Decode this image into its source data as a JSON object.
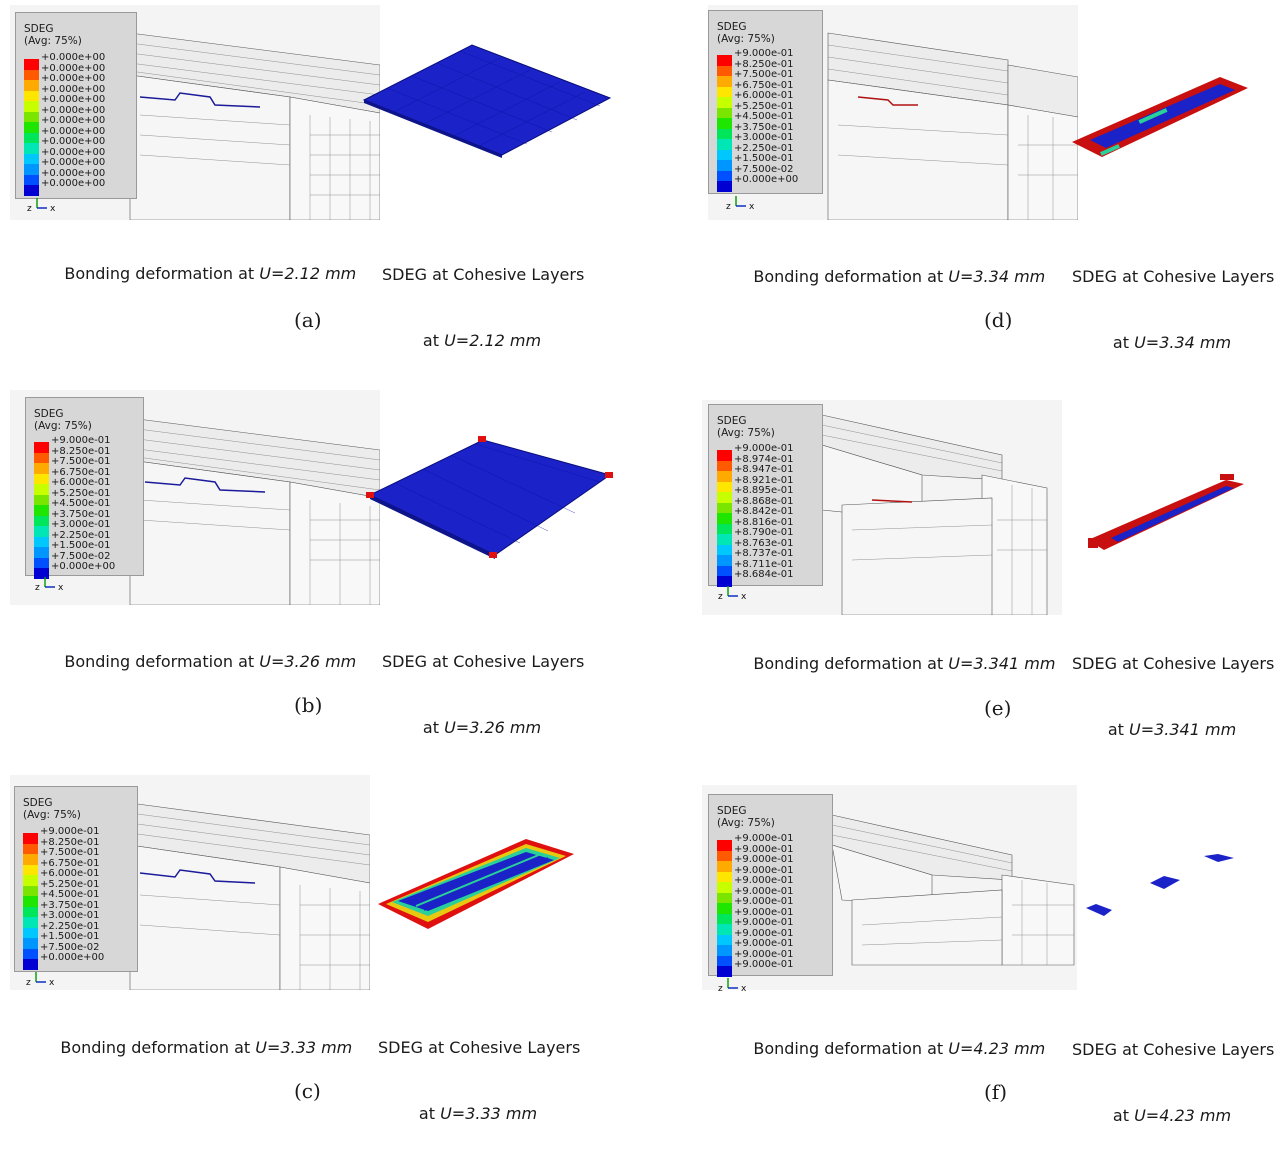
{
  "colors": [
    "#ff0000",
    "#ff5a00",
    "#ffaa00",
    "#ffe600",
    "#c8ff00",
    "#7ae600",
    "#1ee600",
    "#00e65a",
    "#00e6b4",
    "#00c8ff",
    "#0096ff",
    "#0050ff",
    "#0000d2"
  ],
  "panels": [
    {
      "id": "a",
      "legend_title": "SDEG",
      "legend_subtitle": "(Avg: 75%)",
      "legend_values": [
        "+0.000e+00",
        "+0.000e+00",
        "+0.000e+00",
        "+0.000e+00",
        "+0.000e+00",
        "+0.000e+00",
        "+0.000e+00",
        "+0.000e+00",
        "+0.000e+00",
        "+0.000e+00",
        "+0.000e+00",
        "+0.000e+00",
        "+0.000e+00"
      ],
      "caption_left_prefix": "Bonding deformation at ",
      "caption_left_u": "U=2.12 mm",
      "caption_right_line1": "SDEG at Cohesive Layers",
      "caption_right_prefix": "at ",
      "caption_right_u": "U=2.12 mm",
      "sublabel": "(a)"
    },
    {
      "id": "b",
      "legend_title": "SDEG",
      "legend_subtitle": "(Avg: 75%)",
      "legend_values": [
        "+9.000e-01",
        "+8.250e-01",
        "+7.500e-01",
        "+6.750e-01",
        "+6.000e-01",
        "+5.250e-01",
        "+4.500e-01",
        "+3.750e-01",
        "+3.000e-01",
        "+2.250e-01",
        "+1.500e-01",
        "+7.500e-02",
        "+0.000e+00"
      ],
      "caption_left_prefix": "Bonding deformation at ",
      "caption_left_u": "U=3.26 mm",
      "caption_right_line1": "SDEG at Cohesive Layers",
      "caption_right_prefix": "at ",
      "caption_right_u": "U=3.26 mm",
      "sublabel": "(b)"
    },
    {
      "id": "c",
      "legend_title": "SDEG",
      "legend_subtitle": "(Avg: 75%)",
      "legend_values": [
        "+9.000e-01",
        "+8.250e-01",
        "+7.500e-01",
        "+6.750e-01",
        "+6.000e-01",
        "+5.250e-01",
        "+4.500e-01",
        "+3.750e-01",
        "+3.000e-01",
        "+2.250e-01",
        "+1.500e-01",
        "+7.500e-02",
        "+0.000e+00"
      ],
      "caption_left_prefix": "Bonding deformation at ",
      "caption_left_u": "U=3.33 mm",
      "caption_right_line1": "SDEG at Cohesive Layers",
      "caption_right_prefix": "at ",
      "caption_right_u": "U=3.33 mm",
      "sublabel": "(c)"
    },
    {
      "id": "d",
      "legend_title": "SDEG",
      "legend_subtitle": "(Avg: 75%)",
      "legend_values": [
        "+9.000e-01",
        "+8.250e-01",
        "+7.500e-01",
        "+6.750e-01",
        "+6.000e-01",
        "+5.250e-01",
        "+4.500e-01",
        "+3.750e-01",
        "+3.000e-01",
        "+2.250e-01",
        "+1.500e-01",
        "+7.500e-02",
        "+0.000e+00"
      ],
      "caption_left_prefix": "Bonding deformation at ",
      "caption_left_u": "U=3.34 mm",
      "caption_right_line1": "SDEG at Cohesive Layers",
      "caption_right_prefix": "at ",
      "caption_right_u": "U=3.34 mm",
      "sublabel": "(d)"
    },
    {
      "id": "e",
      "legend_title": "SDEG",
      "legend_subtitle": "(Avg: 75%)",
      "legend_values": [
        "+9.000e-01",
        "+8.974e-01",
        "+8.947e-01",
        "+8.921e-01",
        "+8.895e-01",
        "+8.868e-01",
        "+8.842e-01",
        "+8.816e-01",
        "+8.790e-01",
        "+8.763e-01",
        "+8.737e-01",
        "+8.711e-01",
        "+8.684e-01"
      ],
      "caption_left_prefix": "Bonding deformation at ",
      "caption_left_u": "U=3.341 mm",
      "caption_right_line1": "SDEG at Cohesive Layers",
      "caption_right_prefix": "at ",
      "caption_right_u": "U=3.341 mm",
      "sublabel": "(e)"
    },
    {
      "id": "f",
      "legend_title": "SDEG",
      "legend_subtitle": "(Avg: 75%)",
      "legend_values": [
        "+9.000e-01",
        "+9.000e-01",
        "+9.000e-01",
        "+9.000e-01",
        "+9.000e-01",
        "+9.000e-01",
        "+9.000e-01",
        "+9.000e-01",
        "+9.000e-01",
        "+9.000e-01",
        "+9.000e-01",
        "+9.000e-01",
        "+9.000e-01"
      ],
      "caption_left_prefix": "Bonding deformation at ",
      "caption_left_u": "U=4.23 mm",
      "caption_right_line1": "SDEG at Cohesive Layers",
      "caption_right_prefix": "at ",
      "caption_right_u": "U=4.23 mm",
      "sublabel": "(f)"
    }
  ],
  "triad": {
    "z": "z",
    "x": "x"
  }
}
